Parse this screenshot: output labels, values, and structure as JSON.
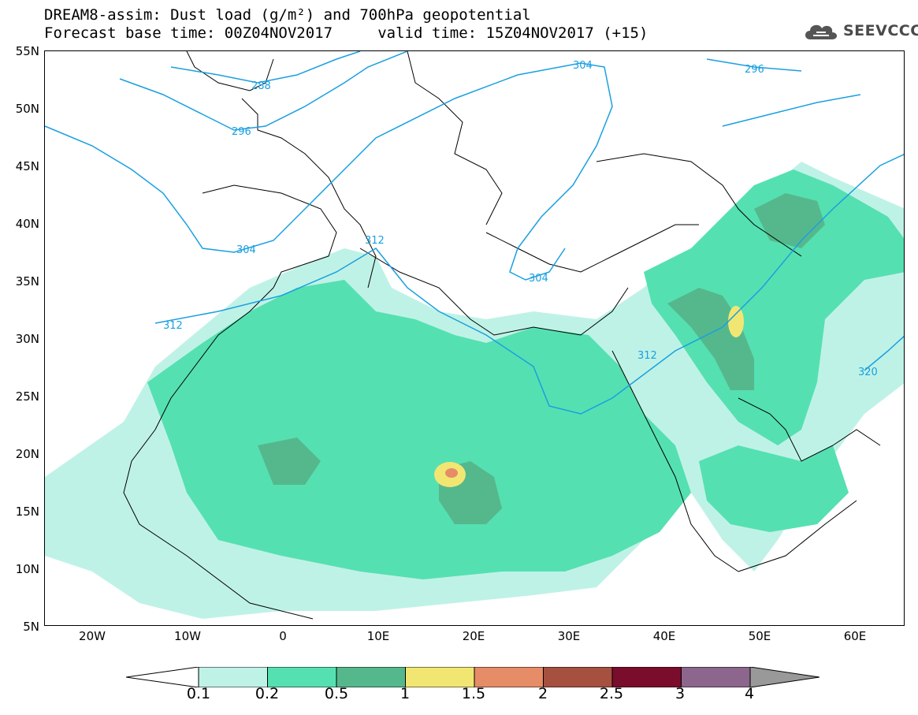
{
  "title": {
    "line1": "DREAM8-assim: Dust load (g/m²) and 700hPa geopotential",
    "line2": "Forecast base time: 00Z04NOV2017     valid time: 15Z04NOV2017 (+15)"
  },
  "logo": {
    "text": "SEEVCCC",
    "icon": "cloud-icon"
  },
  "axes": {
    "lat_labels": [
      "55N",
      "50N",
      "45N",
      "40N",
      "35N",
      "30N",
      "25N",
      "20N",
      "15N",
      "10N",
      "5N"
    ],
    "lon_labels": [
      "20W",
      "10W",
      "0",
      "10E",
      "20E",
      "30E",
      "40E",
      "50E",
      "60E"
    ],
    "lat_range": [
      5,
      55
    ],
    "lon_range": [
      -25,
      65
    ]
  },
  "contours": {
    "color": "#1aa0e0",
    "labels": [
      "288",
      "296",
      "304",
      "312",
      "320"
    ],
    "placed": [
      {
        "text": "288"
      },
      {
        "text": "296"
      },
      {
        "text": "304"
      },
      {
        "text": "296"
      },
      {
        "text": "304"
      },
      {
        "text": "312"
      },
      {
        "text": "304"
      },
      {
        "text": "312"
      },
      {
        "text": "312"
      },
      {
        "text": "320"
      }
    ]
  },
  "colorbar": {
    "levels": [
      "0.1",
      "0.2",
      "0.5",
      "1",
      "1.5",
      "2",
      "2.5",
      "3",
      "4"
    ],
    "colors": [
      "#bff2e6",
      "#55e0b1",
      "#55b88c",
      "#f2e673",
      "#e68c66",
      "#a65040",
      "#7a0d2b",
      "#8c668c",
      "#999999"
    ]
  }
}
